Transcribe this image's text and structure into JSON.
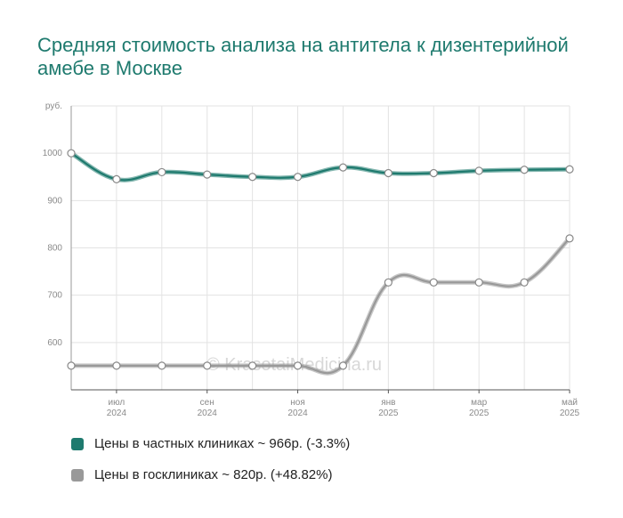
{
  "title": "Средняя стоимость анализа на антитела к дизентерийной амебе в Москве",
  "watermark": "© KrasotaiMedicina.ru",
  "colors": {
    "private": "#1e7a6e",
    "public": "#999999",
    "grid": "#e3e3e3",
    "title": "#1e7a6e"
  },
  "legend": {
    "private": "Цены в частных клиниках ~ 966р. (-3.3%)",
    "public": "Цены в госклиниках ~ 820р. (+48.82%)"
  },
  "chart_data": {
    "type": "line",
    "ylabel": "руб.",
    "ylim": [
      500,
      1100
    ],
    "yticks": [
      600,
      700,
      800,
      900,
      1000
    ],
    "x": [
      0,
      1,
      2,
      3,
      4,
      5,
      6,
      7,
      8,
      9,
      10,
      11
    ],
    "xticks": [
      {
        "x": 1,
        "month": "июл",
        "year": "2024"
      },
      {
        "x": 3,
        "month": "сен",
        "year": "2024"
      },
      {
        "x": 5,
        "month": "ноя",
        "year": "2024"
      },
      {
        "x": 7,
        "month": "янв",
        "year": "2025"
      },
      {
        "x": 9,
        "month": "мар",
        "year": "2025"
      },
      {
        "x": 11,
        "month": "май",
        "year": "2025"
      }
    ],
    "grid": true,
    "legend_position": "bottom",
    "series": [
      {
        "name": "Цены в частных клиниках",
        "key": "private",
        "values": [
          1000,
          945,
          960,
          955,
          950,
          950,
          970,
          958,
          958,
          963,
          965,
          966
        ]
      },
      {
        "name": "Цены в госклиниках",
        "key": "public",
        "values": [
          551,
          551,
          551,
          551,
          551,
          551,
          551,
          727,
          727,
          727,
          727,
          820
        ]
      }
    ]
  }
}
